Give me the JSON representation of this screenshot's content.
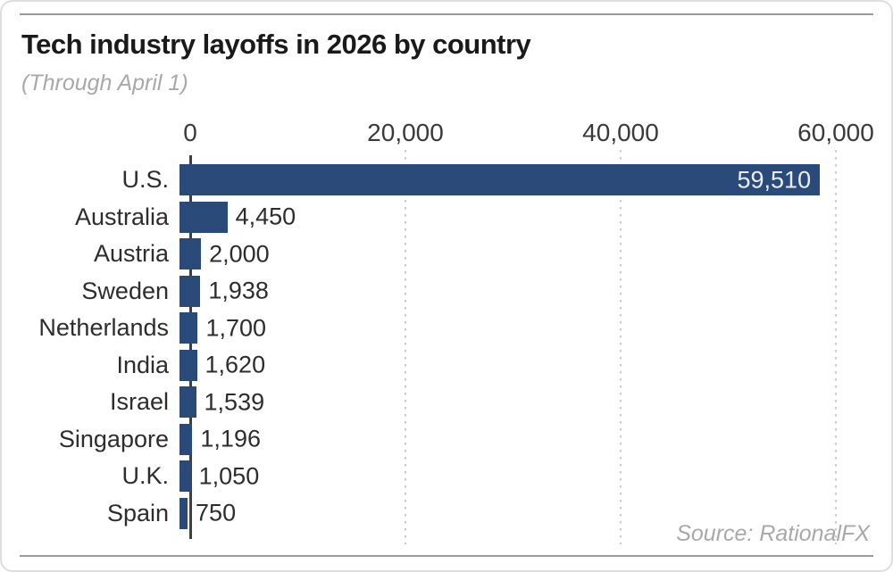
{
  "page": {
    "title": "Tech industry layoffs in 2026 by country",
    "subtitle": "(Through April 1)",
    "source": "Source: RationalFX"
  },
  "chart_data": {
    "type": "bar",
    "orientation": "horizontal",
    "title": "Tech industry layoffs in 2026 by country",
    "subtitle": "(Through April 1)",
    "categories": [
      "U.S.",
      "Australia",
      "Austria",
      "Sweden",
      "Netherlands",
      "India",
      "Israel",
      "Singapore",
      "U.K.",
      "Spain"
    ],
    "values": [
      59510,
      4450,
      2000,
      1938,
      1700,
      1620,
      1539,
      1196,
      1050,
      750
    ],
    "value_labels": [
      "59,510",
      "4,450",
      "2,000",
      "1,938",
      "1,700",
      "1,620",
      "1,539",
      "1,196",
      "1,050",
      "750"
    ],
    "xlabel": "",
    "ylabel": "",
    "xlim": [
      0,
      60000
    ],
    "x_ticks": [
      0,
      20000,
      40000,
      60000
    ],
    "x_tick_labels": [
      "0",
      "20,000",
      "40,000",
      "60,000"
    ],
    "grid": "dotted-vertical",
    "legend": false,
    "source": "Source: RationalFX",
    "colors": {
      "bar": "#2a4a79",
      "value_inside": "#e9eef5",
      "value_outside": "#2d2d2d",
      "gridline": "#cbcbcb",
      "axis_line": "#3f3f3f",
      "title": "#1a1a1a",
      "subtitle": "#a9a9a9",
      "source": "#a9a9a9",
      "rule": "#9b9b9b"
    }
  }
}
